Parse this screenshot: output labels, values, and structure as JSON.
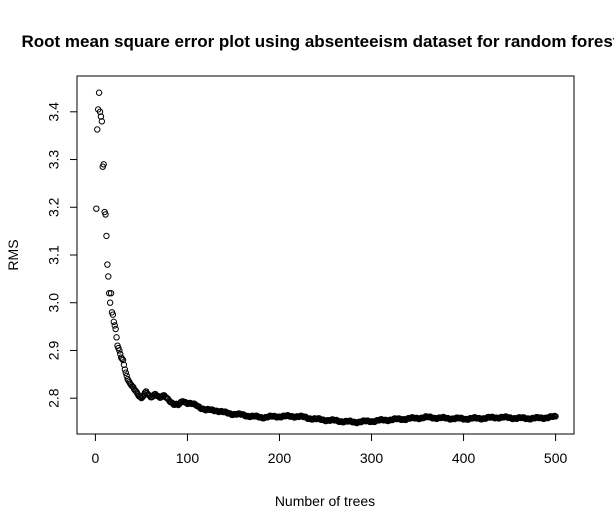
{
  "chart_data": {
    "type": "scatter",
    "title": "Root mean square error plot using absenteeism dataset for random forest",
    "xlabel": "Number of trees",
    "ylabel": "RMS",
    "xlim": [
      -20,
      520
    ],
    "ylim": [
      2.725,
      3.475
    ],
    "xticks": [
      0,
      100,
      200,
      300,
      400,
      500
    ],
    "yticks": [
      2.8,
      2.9,
      3.0,
      3.1,
      3.2,
      3.3,
      3.4
    ],
    "xtick_labels": [
      "0",
      "100",
      "200",
      "300",
      "400",
      "500"
    ],
    "ytick_labels": [
      "2.8",
      "2.9",
      "3.0",
      "3.1",
      "3.2",
      "3.3",
      "3.4"
    ],
    "marker": "open-circle",
    "grid": false,
    "legend": "none",
    "anchors": [
      [
        1,
        3.197
      ],
      [
        2,
        3.363
      ],
      [
        3,
        3.405
      ],
      [
        4,
        3.44
      ],
      [
        5,
        3.4
      ],
      [
        6,
        3.39
      ],
      [
        7,
        3.38
      ],
      [
        8,
        3.285
      ],
      [
        9,
        3.29
      ],
      [
        10,
        3.19
      ],
      [
        11,
        3.185
      ],
      [
        12,
        3.14
      ],
      [
        13,
        3.08
      ],
      [
        14,
        3.055
      ],
      [
        15,
        3.02
      ],
      [
        16,
        3.0
      ],
      [
        17,
        3.02
      ],
      [
        18,
        2.98
      ],
      [
        19,
        2.975
      ],
      [
        20,
        2.96
      ],
      [
        22,
        2.945
      ],
      [
        24,
        2.91
      ],
      [
        26,
        2.9
      ],
      [
        28,
        2.885
      ],
      [
        30,
        2.88
      ],
      [
        32,
        2.86
      ],
      [
        35,
        2.84
      ],
      [
        38,
        2.83
      ],
      [
        42,
        2.82
      ],
      [
        46,
        2.81
      ],
      [
        50,
        2.8
      ],
      [
        55,
        2.812
      ],
      [
        60,
        2.802
      ],
      [
        65,
        2.81
      ],
      [
        70,
        2.8
      ],
      [
        75,
        2.805
      ],
      [
        80,
        2.797
      ],
      [
        85,
        2.787
      ],
      [
        90,
        2.785
      ],
      [
        95,
        2.795
      ],
      [
        100,
        2.79
      ],
      [
        110,
        2.785
      ],
      [
        120,
        2.775
      ],
      [
        130,
        2.775
      ],
      [
        140,
        2.77
      ],
      [
        150,
        2.767
      ],
      [
        160,
        2.765
      ],
      [
        170,
        2.762
      ],
      [
        180,
        2.76
      ],
      [
        200,
        2.762
      ],
      [
        220,
        2.762
      ],
      [
        240,
        2.756
      ],
      [
        260,
        2.753
      ],
      [
        280,
        2.75
      ],
      [
        300,
        2.752
      ],
      [
        320,
        2.755
      ],
      [
        340,
        2.757
      ],
      [
        360,
        2.76
      ],
      [
        380,
        2.758
      ],
      [
        400,
        2.757
      ],
      [
        420,
        2.758
      ],
      [
        440,
        2.76
      ],
      [
        460,
        2.758
      ],
      [
        480,
        2.758
      ],
      [
        500,
        2.761
      ]
    ]
  }
}
